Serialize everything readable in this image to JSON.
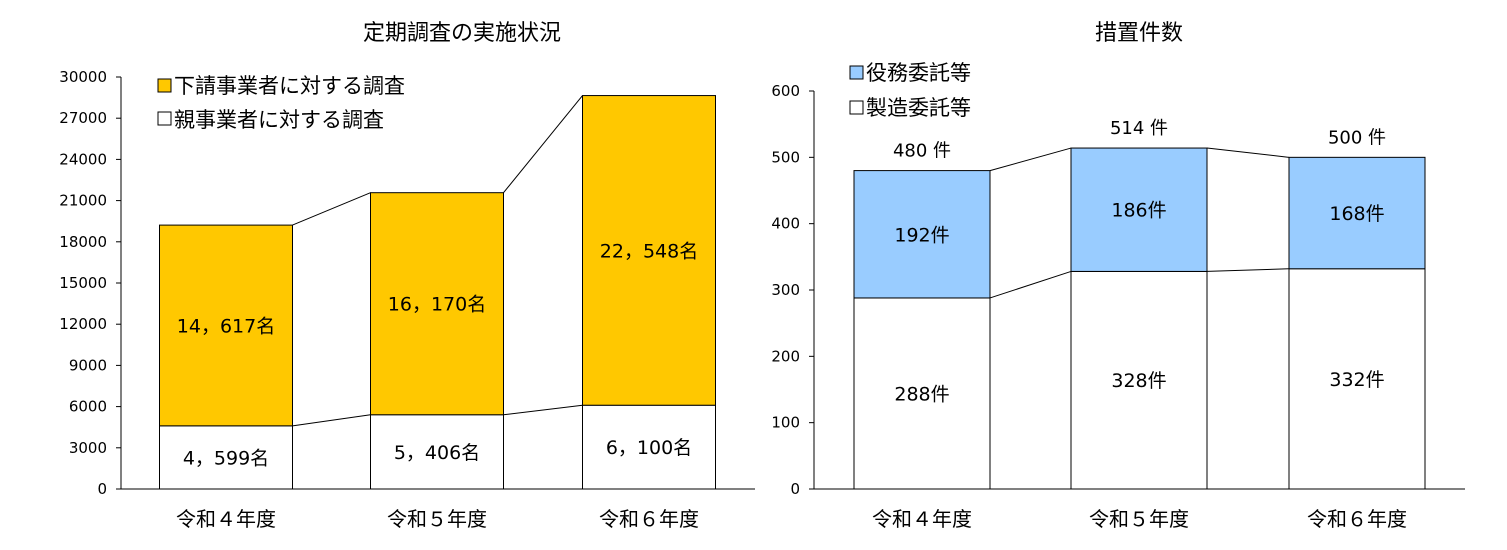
{
  "chart_data": [
    {
      "type": "bar",
      "stacked": true,
      "title": "定期調査の実施状況",
      "categories": [
        "令和４年度",
        "令和５年度",
        "令和６年度"
      ],
      "ylim": [
        0,
        30000
      ],
      "yticks": [
        "0",
        "3000",
        "6000",
        "9000",
        "12000",
        "15000",
        "18000",
        "21000",
        "24000",
        "27000",
        "30000"
      ],
      "series": [
        {
          "name": "親事業者に対する調査",
          "values": [
            4599,
            5406,
            6100
          ],
          "labels": [
            "4，599名",
            "5，406名",
            "6，100名"
          ],
          "color": "#ffffff"
        },
        {
          "name": "下請事業者に対する調査",
          "values": [
            14617,
            16170,
            22548
          ],
          "labels": [
            "14，617名",
            "16，170名",
            "22，548名"
          ],
          "color": "#ffc800"
        }
      ],
      "legend": [
        {
          "label": "下請事業者に対する調査",
          "color": "#ffc800"
        },
        {
          "label": "親事業者に対する調査",
          "color": "#ffffff"
        }
      ],
      "legend_position": "top-left"
    },
    {
      "type": "bar",
      "stacked": true,
      "title": "措置件数",
      "categories": [
        "令和４年度",
        "令和５年度",
        "令和６年度"
      ],
      "ylim": [
        0,
        600
      ],
      "yticks": [
        "0",
        "100",
        "200",
        "300",
        "400",
        "500",
        "600"
      ],
      "series": [
        {
          "name": "製造委託等",
          "values": [
            288,
            328,
            332
          ],
          "labels": [
            "288件",
            "328件",
            "332件"
          ],
          "color": "#ffffff"
        },
        {
          "name": "役務委託等",
          "values": [
            192,
            186,
            168
          ],
          "labels": [
            "192件",
            "186件",
            "168件"
          ],
          "color": "#99ccff"
        }
      ],
      "totals": [
        "480 件",
        "514 件",
        "500 件"
      ],
      "legend": [
        {
          "label": "役務委託等",
          "color": "#99ccff"
        },
        {
          "label": "製造委託等",
          "color": "#ffffff"
        }
      ],
      "legend_position": "top-left"
    }
  ]
}
